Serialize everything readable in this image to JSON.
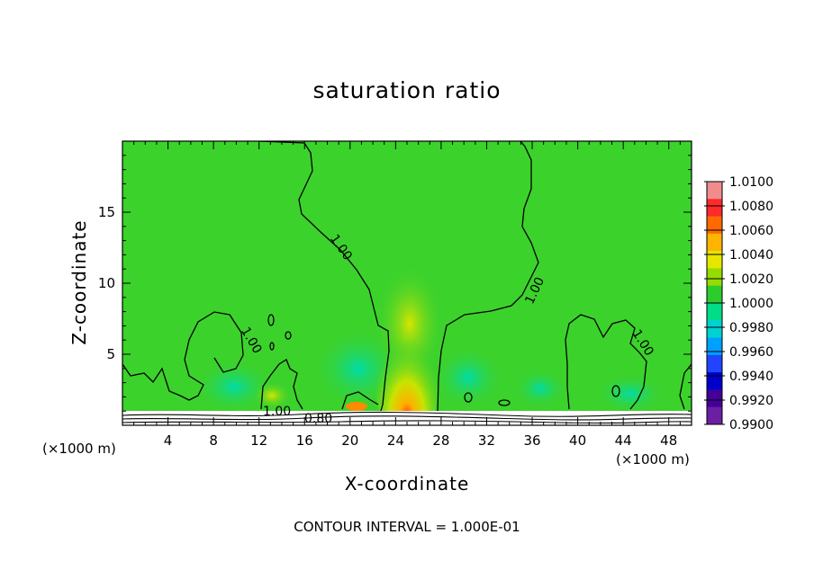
{
  "chart_data": {
    "type": "heatmap",
    "title": "saturation ratio",
    "xlabel": "X-coordinate",
    "ylabel": "Z-coordinate",
    "x_unit": "(×1000 m)",
    "y_unit": "(×1000 m)",
    "xlim": [
      0,
      50
    ],
    "ylim": [
      0,
      20
    ],
    "x_ticks": [
      "4",
      "8",
      "12",
      "16",
      "20",
      "24",
      "28",
      "32",
      "36",
      "40",
      "44",
      "48"
    ],
    "y_ticks": [
      "5",
      "10",
      "15"
    ],
    "colorbar": {
      "labels": [
        "1.0100",
        "1.0080",
        "1.0060",
        "1.0040",
        "1.0020",
        "1.0000",
        "0.9980",
        "0.9960",
        "0.9940",
        "0.9920",
        "0.9900"
      ],
      "colors": [
        "#f08c8c",
        "#ff2a2a",
        "#ff6a00",
        "#ffb400",
        "#e6e600",
        "#96dc00",
        "#2ccc2c",
        "#00dd88",
        "#00d2d2",
        "#00a0ff",
        "#2244ff",
        "#0000cc",
        "#440099",
        "#6b1fa3"
      ]
    },
    "contour_labels": [
      "1.00",
      "1.00",
      "1.00",
      "1.00",
      "1.00",
      "0.80"
    ],
    "background_value": 1.0,
    "contour_interval": "CONTOUR INTERVAL = 1.000E-01"
  }
}
